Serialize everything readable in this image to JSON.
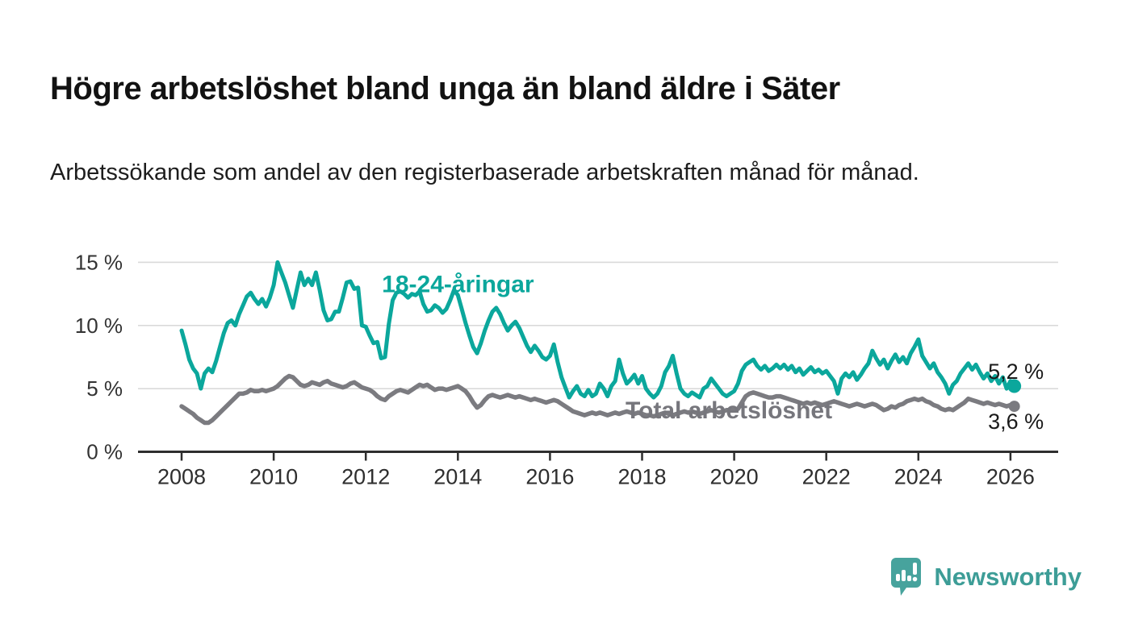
{
  "header": {
    "title": "Högre arbetslöshet bland unga än bland äldre i Säter",
    "subtitle": "Arbetssökande som andel av den registerbaserade arbetskraften månad för månad."
  },
  "footer": {
    "brand": "Newsworthy",
    "logo_icon": "speech-bubble-bar-chart-icon",
    "brand_text_color": "#3d9d97",
    "brand_icon_color": "#47a39d"
  },
  "colors": {
    "youth_line": "#0ba79c",
    "total_line": "#7b7b80",
    "grid": "#d9d9d9",
    "axis": "#2e2e2e",
    "tick_label": "#333333",
    "value_label": "#1a1a1a",
    "background": "#ffffff"
  },
  "chart_data": {
    "type": "line",
    "title": "",
    "xlabel": "",
    "ylabel": "",
    "grid": "horizontal",
    "legend_position": "inline-labels",
    "x_unit": "month",
    "x_start_year": 2008,
    "x_months_per_step": 1,
    "xlim": [
      2006.95,
      2027.0
    ],
    "ylim": [
      0,
      16
    ],
    "x_ticks": [
      2008,
      2010,
      2012,
      2014,
      2016,
      2018,
      2020,
      2022,
      2024,
      2026
    ],
    "x_tick_labels": [
      "2008",
      "2010",
      "2012",
      "2014",
      "2016",
      "2018",
      "2020",
      "2022",
      "2024",
      "2026"
    ],
    "y_ticks": [
      0,
      5,
      10,
      15
    ],
    "y_tick_labels": [
      "0 %",
      "5 %",
      "10 %",
      "15 %"
    ],
    "y_gridlines": [
      5,
      10,
      15
    ],
    "series": [
      {
        "name": "Total arbetslöshet",
        "color": "#7b7b80",
        "stroke_width": 5.5,
        "end_dot": true,
        "end_value": 3.6,
        "end_label": "3,6 %",
        "end_label_side": "below",
        "inline_label": "Total arbetslöshet",
        "label_anchor": {
          "year": 2017.64,
          "pct": 2.65
        },
        "values": [
          3.6,
          3.4,
          3.2,
          3.0,
          2.7,
          2.5,
          2.3,
          2.3,
          2.5,
          2.8,
          3.1,
          3.4,
          3.7,
          4.0,
          4.3,
          4.6,
          4.6,
          4.7,
          4.9,
          4.8,
          4.8,
          4.9,
          4.8,
          4.9,
          5.0,
          5.2,
          5.5,
          5.8,
          6.0,
          5.9,
          5.6,
          5.3,
          5.2,
          5.3,
          5.5,
          5.4,
          5.3,
          5.5,
          5.6,
          5.4,
          5.3,
          5.2,
          5.1,
          5.2,
          5.4,
          5.5,
          5.3,
          5.1,
          5.0,
          4.9,
          4.7,
          4.4,
          4.2,
          4.1,
          4.4,
          4.6,
          4.8,
          4.9,
          4.8,
          4.7,
          4.9,
          5.1,
          5.3,
          5.2,
          5.3,
          5.1,
          4.9,
          5.0,
          5.0,
          4.9,
          5.0,
          5.1,
          5.2,
          5.0,
          4.8,
          4.4,
          3.9,
          3.5,
          3.7,
          4.1,
          4.4,
          4.5,
          4.4,
          4.3,
          4.4,
          4.5,
          4.4,
          4.3,
          4.4,
          4.3,
          4.2,
          4.1,
          4.2,
          4.1,
          4.0,
          3.9,
          4.0,
          4.1,
          4.0,
          3.8,
          3.6,
          3.4,
          3.2,
          3.1,
          3.0,
          2.9,
          3.0,
          3.1,
          3.0,
          3.1,
          3.0,
          2.9,
          3.0,
          3.1,
          3.0,
          3.1,
          3.2,
          3.1,
          3.0,
          3.1,
          3.0,
          2.9,
          2.9,
          2.8,
          2.9,
          3.0,
          3.1,
          3.0,
          2.9,
          3.0,
          3.1,
          3.2,
          3.1,
          3.2,
          3.1,
          3.0,
          3.1,
          3.2,
          3.3,
          3.2,
          3.1,
          3.2,
          3.3,
          3.3,
          3.3,
          3.4,
          3.9,
          4.4,
          4.6,
          4.7,
          4.6,
          4.5,
          4.4,
          4.3,
          4.3,
          4.4,
          4.4,
          4.3,
          4.2,
          4.1,
          4.0,
          3.9,
          3.8,
          3.9,
          3.8,
          3.9,
          3.8,
          3.7,
          3.8,
          3.9,
          4.0,
          3.9,
          3.8,
          3.7,
          3.6,
          3.7,
          3.8,
          3.7,
          3.6,
          3.7,
          3.8,
          3.7,
          3.5,
          3.3,
          3.4,
          3.6,
          3.5,
          3.7,
          3.8,
          4.0,
          4.1,
          4.2,
          4.1,
          4.2,
          4.0,
          3.9,
          3.7,
          3.6,
          3.4,
          3.3,
          3.4,
          3.3,
          3.5,
          3.7,
          3.9,
          4.2,
          4.1,
          4.0,
          3.9,
          3.8,
          3.9,
          3.8,
          3.7,
          3.8,
          3.7,
          3.6,
          3.7,
          3.6
        ]
      },
      {
        "name": "18-24-åringar",
        "color": "#0ba79c",
        "stroke_width": 5,
        "end_dot": true,
        "end_value": 5.2,
        "end_label": "5,2 %",
        "end_label_side": "above",
        "inline_label": "18-24-åringar",
        "label_anchor": {
          "year": 2012.35,
          "pct": 12.65
        },
        "values": [
          9.6,
          8.5,
          7.3,
          6.6,
          6.2,
          5.0,
          6.2,
          6.6,
          6.3,
          7.2,
          8.3,
          9.4,
          10.2,
          10.4,
          10.0,
          10.9,
          11.6,
          12.3,
          12.6,
          12.1,
          11.7,
          12.1,
          11.5,
          12.2,
          13.2,
          15.0,
          14.2,
          13.4,
          12.4,
          11.4,
          12.8,
          14.2,
          13.2,
          13.7,
          13.2,
          14.2,
          12.8,
          11.2,
          10.4,
          10.5,
          11.1,
          11.1,
          12.2,
          13.4,
          13.5,
          12.9,
          13.0,
          10.0,
          9.9,
          9.2,
          8.6,
          8.7,
          7.4,
          7.5,
          10.1,
          12.0,
          12.6,
          12.7,
          12.5,
          12.2,
          12.5,
          12.4,
          12.7,
          11.7,
          11.1,
          11.2,
          11.6,
          11.4,
          11.0,
          11.3,
          12.0,
          12.8,
          12.4,
          11.3,
          10.2,
          9.2,
          8.3,
          7.8,
          8.6,
          9.6,
          10.4,
          11.1,
          11.4,
          10.9,
          10.2,
          9.6,
          10.0,
          10.3,
          9.8,
          9.1,
          8.4,
          7.9,
          8.4,
          8.0,
          7.5,
          7.3,
          7.6,
          8.5,
          7.1,
          5.9,
          5.1,
          4.3,
          4.8,
          5.2,
          4.6,
          4.4,
          4.9,
          4.4,
          4.6,
          5.4,
          5.0,
          4.4,
          5.2,
          5.6,
          7.3,
          6.2,
          5.4,
          5.7,
          6.1,
          5.4,
          6.0,
          5.0,
          4.6,
          4.3,
          4.6,
          5.2,
          6.3,
          6.8,
          7.6,
          6.2,
          5.0,
          4.6,
          4.4,
          4.7,
          4.5,
          4.3,
          5.0,
          5.2,
          5.8,
          5.4,
          5.0,
          4.6,
          4.4,
          4.6,
          4.8,
          5.4,
          6.4,
          6.9,
          7.1,
          7.3,
          6.8,
          6.5,
          6.8,
          6.4,
          6.6,
          6.9,
          6.6,
          6.9,
          6.5,
          6.8,
          6.3,
          6.6,
          6.1,
          6.4,
          6.7,
          6.3,
          6.5,
          6.2,
          6.4,
          6.0,
          5.6,
          4.6,
          5.8,
          6.2,
          5.9,
          6.3,
          5.7,
          6.1,
          6.6,
          7.0,
          8.0,
          7.4,
          6.9,
          7.3,
          6.6,
          7.2,
          7.7,
          7.1,
          7.5,
          7.0,
          7.8,
          8.3,
          8.9,
          7.6,
          7.1,
          6.6,
          7.0,
          6.3,
          5.9,
          5.4,
          4.6,
          5.3,
          5.6,
          6.2,
          6.6,
          7.0,
          6.5,
          6.9,
          6.3,
          5.8,
          6.2,
          5.6,
          6.0,
          5.4,
          5.9,
          5.0,
          5.6,
          5.2
        ]
      }
    ]
  }
}
